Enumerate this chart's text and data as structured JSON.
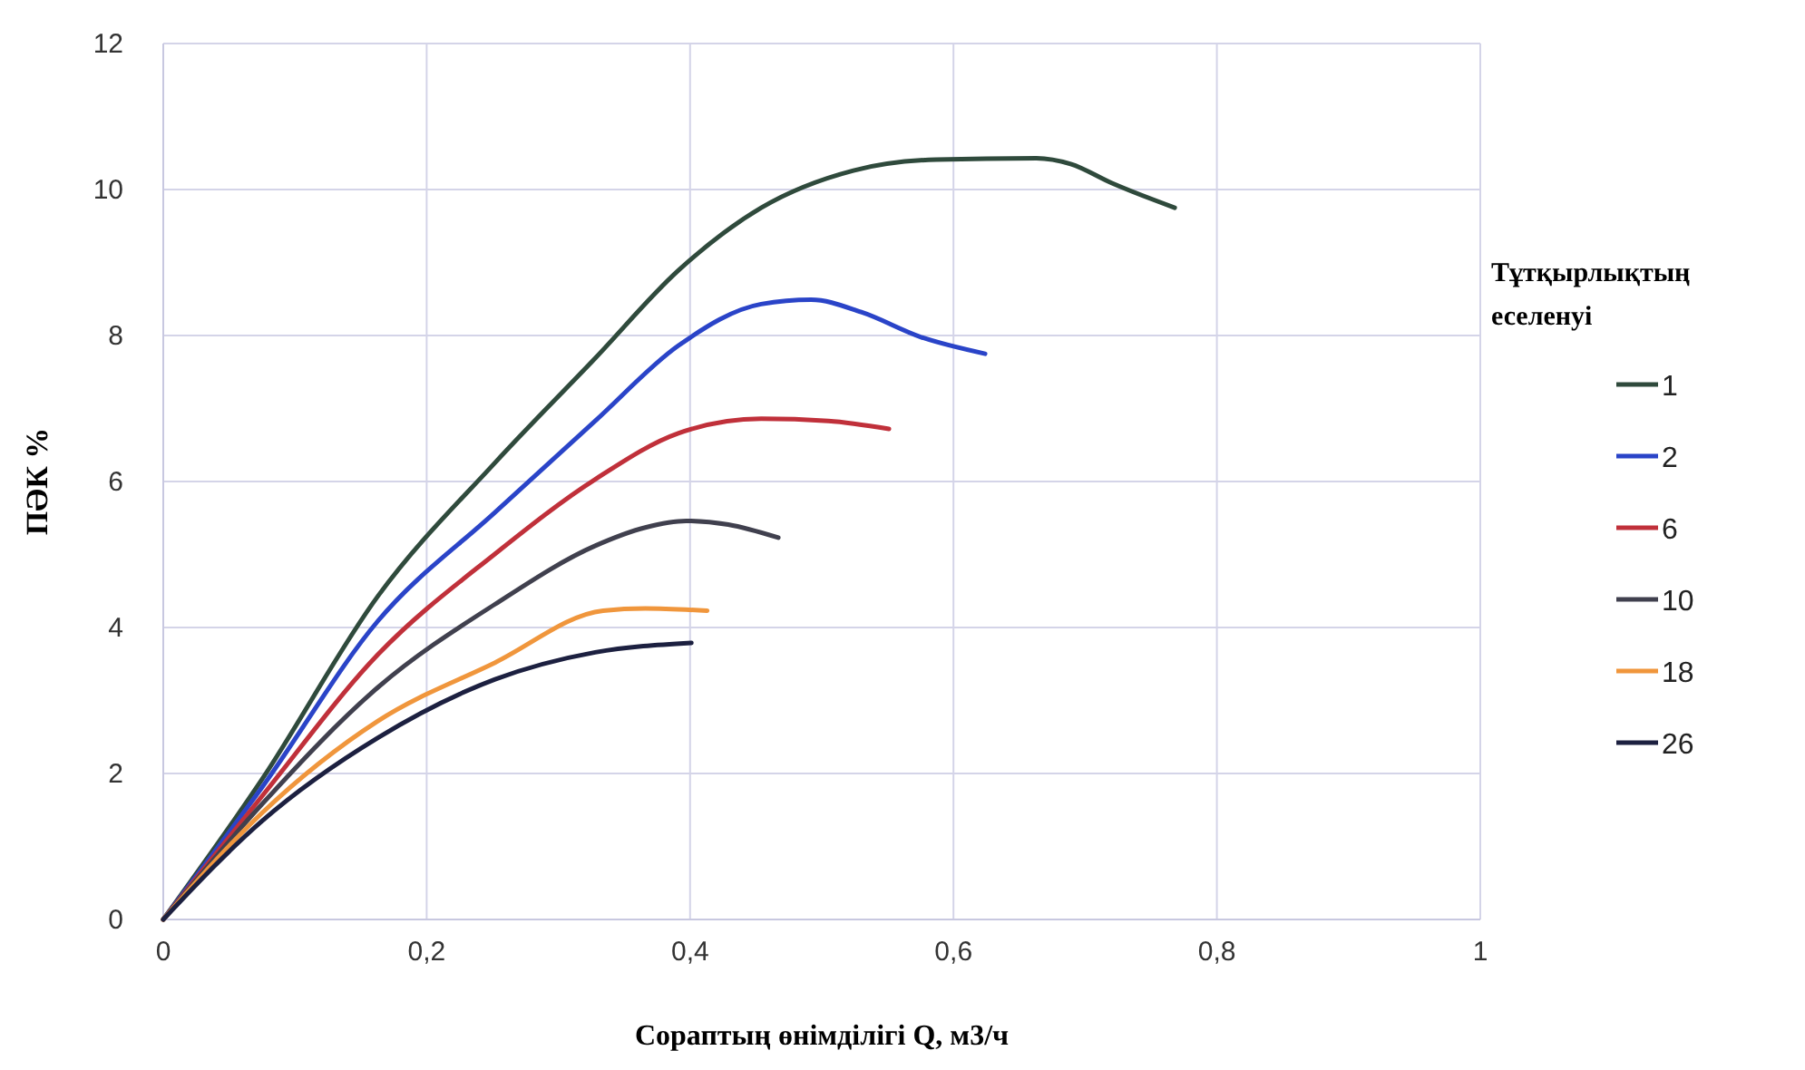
{
  "chart_data": {
    "type": "line",
    "xlabel": "Сораптың өнімділігі Q, м3/ч",
    "ylabel": "ПӘК %",
    "legend_title": "Тұтқырлықтың еселенуі",
    "legend": "right",
    "grid": true,
    "line_style": "solid",
    "marker": "none",
    "xlim": [
      0,
      1
    ],
    "ylim": [
      0,
      12
    ],
    "xticks": [
      0,
      {
        "value": 0.2,
        "label": "0,2"
      },
      {
        "value": 0.4,
        "label": "0,4"
      },
      {
        "value": 0.6,
        "label": "0,6"
      },
      {
        "value": 0.8,
        "label": "0,8"
      },
      1
    ],
    "yticks": [
      0,
      2,
      4,
      6,
      8,
      10,
      12
    ],
    "series": [
      {
        "name": "1",
        "color": "#2f4a3c",
        "x": [
          0,
          0.075,
          0.163,
          0.252,
          0.328,
          0.391,
          0.454,
          0.524,
          0.587,
          0.663,
          0.689,
          0.72,
          0.768
        ],
        "values": [
          0,
          1.92,
          4.43,
          6.26,
          7.69,
          8.89,
          9.75,
          10.26,
          10.41,
          10.43,
          10.35,
          10.09,
          9.75
        ]
      },
      {
        "name": "2",
        "color": "#2a44c8",
        "x": [
          0,
          0.075,
          0.163,
          0.252,
          0.328,
          0.391,
          0.454,
          0.492,
          0.53,
          0.575,
          0.624
        ],
        "values": [
          0,
          1.81,
          4.09,
          5.58,
          6.83,
          7.86,
          8.43,
          8.49,
          8.32,
          7.98,
          7.75
        ]
      },
      {
        "name": "6",
        "color": "#c0303a",
        "x": [
          0,
          0.075,
          0.163,
          0.252,
          0.328,
          0.391,
          0.454,
          0.505,
          0.551
        ],
        "values": [
          0,
          1.69,
          3.63,
          5.01,
          6.03,
          6.66,
          6.86,
          6.83,
          6.72
        ]
      },
      {
        "name": "10",
        "color": "#40404e",
        "x": [
          0,
          0.075,
          0.163,
          0.252,
          0.328,
          0.366,
          0.397,
          0.429,
          0.467
        ],
        "values": [
          0,
          1.58,
          3.18,
          4.32,
          5.12,
          5.37,
          5.46,
          5.41,
          5.23
        ]
      },
      {
        "name": "18",
        "color": "#f0963c",
        "x": [
          0,
          0.075,
          0.163,
          0.252,
          0.334,
          0.366,
          0.413
        ],
        "values": [
          0,
          1.46,
          2.72,
          3.52,
          4.23,
          4.26,
          4.23
        ]
      },
      {
        "name": "26",
        "color": "#1c2040",
        "x": [
          0,
          0.075,
          0.163,
          0.252,
          0.328,
          0.401
        ],
        "values": [
          0,
          1.35,
          2.49,
          3.29,
          3.66,
          3.79
        ]
      }
    ]
  }
}
